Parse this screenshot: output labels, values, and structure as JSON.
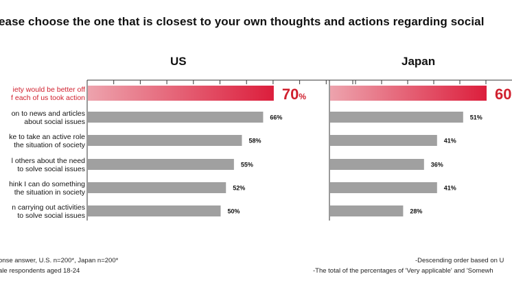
{
  "title": "ease choose the one that is closest to your own thoughts and actions regarding social",
  "footnotes": {
    "left_line1": "onse answer, U.S. n=200*, Japan n=200*",
    "left_line2": "ale respondents aged 18-24",
    "right_line1": "-Descending order based on U",
    "right_line2": "-The total of the percentages of 'Very applicable' and 'Somewh"
  },
  "colors": {
    "highlight_start": "#eda3ad",
    "highlight_end": "#dc1e3c",
    "highlight_text": "#d0202e",
    "bar": "#a0a0a0",
    "axis": "#333333"
  },
  "chart_data": [
    {
      "type": "bar",
      "orientation": "horizontal",
      "title": "US",
      "categories": [
        [
          "iety would be better off",
          "f each of us took action"
        ],
        [
          "on to news and articles",
          "about social issues"
        ],
        [
          "ke to take an active role",
          "the situation of society"
        ],
        [
          "l others about the need",
          "to solve social issues"
        ],
        [
          "hink I can do something",
          "the situation in society"
        ],
        [
          "n carrying out activities",
          "to solve social issues"
        ]
      ],
      "values": [
        70,
        66,
        58,
        55,
        52,
        50
      ],
      "labels": [
        "70%",
        "66%",
        "58%",
        "55%",
        "52%",
        "50%"
      ],
      "highlight_index": 0,
      "xlim": [
        0,
        100
      ],
      "grid": false
    },
    {
      "type": "bar",
      "orientation": "horizontal",
      "title": "Japan",
      "values": [
        60,
        51,
        41,
        36,
        41,
        28
      ],
      "labels": [
        "60",
        "51%",
        "41%",
        "36%",
        "41%",
        "28%"
      ],
      "highlight_index": 0,
      "xlim": [
        0,
        100
      ],
      "grid": false
    }
  ]
}
